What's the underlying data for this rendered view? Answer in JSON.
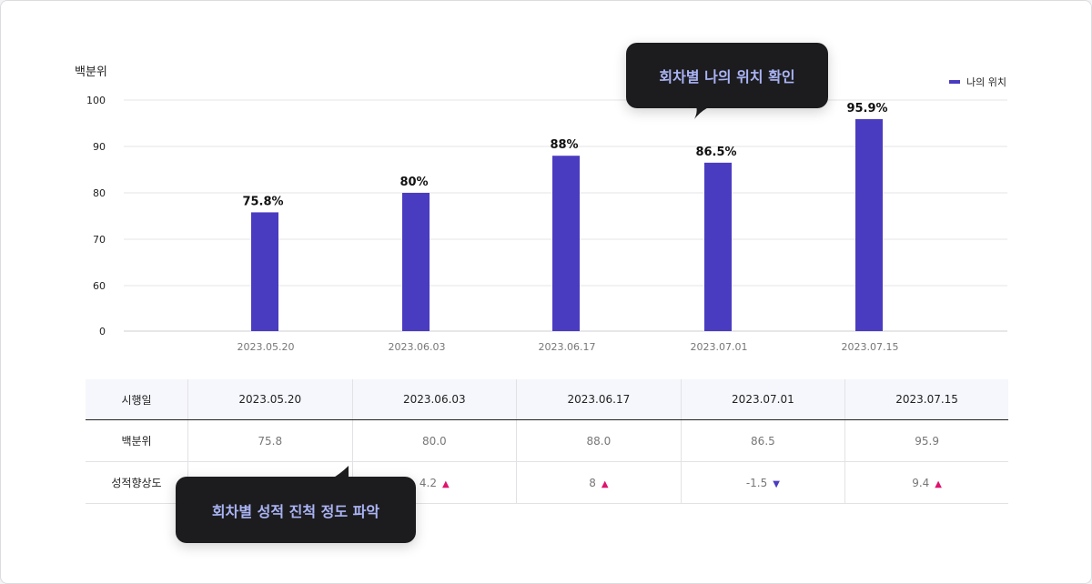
{
  "chart_data": {
    "type": "bar",
    "ylabel": "백분위",
    "yticks": [
      0,
      60,
      70,
      80,
      90,
      100
    ],
    "ylim": [
      0,
      100
    ],
    "grid": true,
    "legend_placement": "top-right",
    "categories": [
      "2023.05.20",
      "2023.06.03",
      "2023.06.17",
      "2023.07.01",
      "2023.07.15"
    ],
    "series": [
      {
        "name": "나의 위치",
        "values": [
          75.8,
          80,
          88,
          86.5,
          95.9
        ],
        "color": "#4a3cc0"
      }
    ],
    "data_labels": [
      "75.8%",
      "80%",
      "88%",
      "86.5%",
      "95.9%"
    ]
  },
  "table": {
    "header": [
      "시행일",
      "2023.05.20",
      "2023.06.03",
      "2023.06.17",
      "2023.07.01",
      "2023.07.15"
    ],
    "rows": [
      {
        "label": "백분위",
        "cells": [
          "75.8",
          "80.0",
          "88.0",
          "86.5",
          "95.9"
        ]
      },
      {
        "label": "성적향상도",
        "cells": [
          "",
          "4.2",
          "8",
          "-1.5",
          "9.4"
        ],
        "trend": [
          "",
          "up",
          "up",
          "down",
          "up"
        ]
      }
    ]
  },
  "tooltips": {
    "position": "회차별 나의 위치 확인",
    "progress": "회차별 성적 진척 정도 파악"
  },
  "colors": {
    "bar": "#4a3cc0",
    "up": "#e0126e",
    "down": "#4a3cc0",
    "tooltip_bg": "#1c1c1e",
    "tooltip_text": "#aab4f5"
  }
}
